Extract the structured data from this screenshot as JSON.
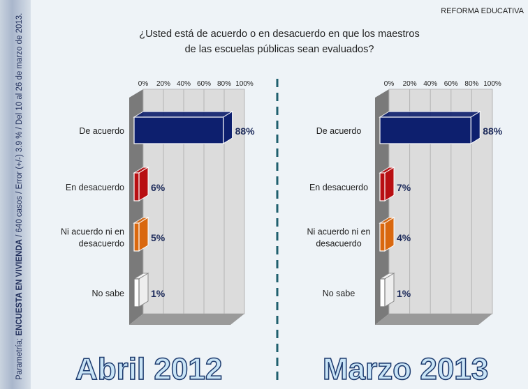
{
  "header": {
    "section": "REFORMA EDUCATIVA",
    "question_line1": "¿Usted está de acuerdo o en desacuerdo en que los maestros",
    "question_line2": "de las escuelas públicas sean evaluados?"
  },
  "sidebar": {
    "source": "Parametría; ",
    "survey": "ENCUESTA EN VIVIENDA",
    "details": " / 640 casos / Error (+/-) 3.9 % / Del 10 al 26 de marzo de 2013."
  },
  "colors": {
    "De acuerdo": "#0d1f6e",
    "En desacuerdo": "#b80f12",
    "Ni acuerdo ni en desacuerdo": "#d9680f",
    "No sabe": "#ffffff"
  },
  "chart_data": [
    {
      "type": "bar",
      "orientation": "horizontal",
      "title": "Abril 2012",
      "categories": [
        "De acuerdo",
        "En desacuerdo",
        "Ni acuerdo ni en desacuerdo",
        "No sabe"
      ],
      "values": [
        88,
        6,
        5,
        1
      ],
      "data_labels": [
        "88%",
        "6%",
        "5%",
        "1%"
      ],
      "xlim": [
        0,
        100
      ],
      "xticks": [
        "0%",
        "20%",
        "40%",
        "60%",
        "80%",
        "100%"
      ],
      "grid": true
    },
    {
      "type": "bar",
      "orientation": "horizontal",
      "title": "Marzo 2013",
      "categories": [
        "De acuerdo",
        "En desacuerdo",
        "Ni acuerdo ni en desacuerdo",
        "No sabe"
      ],
      "values": [
        88,
        7,
        4,
        1
      ],
      "data_labels": [
        "88%",
        "7%",
        "4%",
        "1%"
      ],
      "xlim": [
        0,
        100
      ],
      "xticks": [
        "0%",
        "20%",
        "40%",
        "60%",
        "80%",
        "100%"
      ],
      "grid": true
    }
  ]
}
